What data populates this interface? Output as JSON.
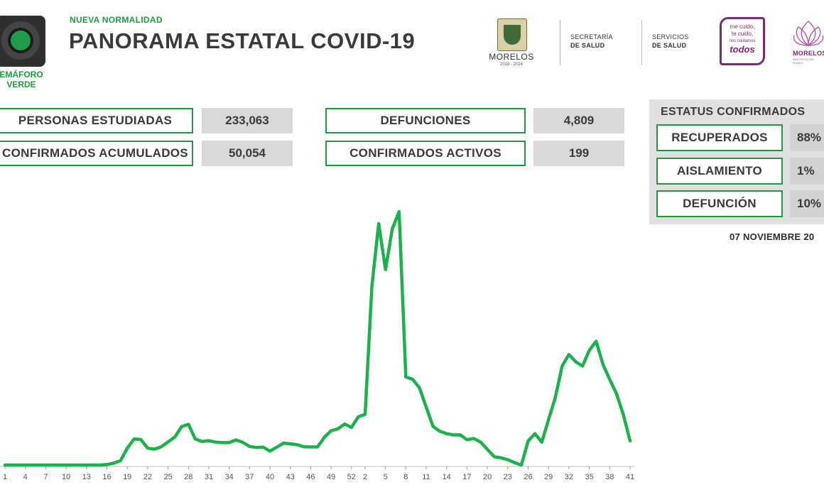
{
  "header": {
    "semaforo_label_line1": "EMÁFORO",
    "semaforo_label_line2": "VERDE",
    "kicker": "NUEVA NORMALIDAD",
    "title": "PANORAMA ESTATAL COVID-19",
    "logos": {
      "morelos_text": "MORELOS",
      "morelos_years": "2018 - 2024",
      "secretaria_line1": "SECRETARÍA",
      "secretaria_line2": "DE SALUD",
      "servicios_line1": "SERVICIOS",
      "servicios_line2": "DE SALUD",
      "todos_line1": "me cuido,",
      "todos_line2": "te cuido,",
      "todos_line3": "nos cuidamos",
      "todos_big": "todos",
      "morelos2": "MORELOS",
      "morelos2_sub": "ANFITRIÓN DEL MUNDO"
    },
    "colors": {
      "accent_green": "#20993f",
      "purple": "#7b2a7a"
    }
  },
  "stats": {
    "personas_label": "PERSONAS ESTUDIADAS",
    "personas_value": "233,063",
    "confirmados_label": "CONFIRMADOS ACUMULADOS",
    "confirmados_value": "50,054",
    "defunciones_label": "DEFUNCIONES",
    "defunciones_value": "4,809",
    "activos_label": "CONFIRMADOS ACTIVOS",
    "activos_value": "199"
  },
  "status": {
    "title": "ESTATUS CONFIRMADOS",
    "recuperados_label": "RECUPERADOS",
    "recuperados_value": "88%",
    "aislamiento_label": "AISLAMIENTO",
    "aislamiento_value": "1%",
    "defuncion_label": "DEFUNCIÓN",
    "defuncion_value": "10%",
    "date": "07 NOVIEMBRE 20"
  },
  "chart_data": {
    "type": "line",
    "title": "",
    "xlabel": "",
    "ylabel": "",
    "line_color": "#1fb04e",
    "grid": false,
    "tick_labels": [
      "1",
      "4",
      "7",
      "10",
      "13",
      "16",
      "19",
      "22",
      "25",
      "28",
      "31",
      "34",
      "37",
      "40",
      "43",
      "46",
      "49",
      "52",
      "2",
      "5",
      "8",
      "11",
      "14",
      "17",
      "20",
      "23",
      "26",
      "29",
      "32",
      "35",
      "38",
      "41"
    ],
    "ylim": [
      0,
      1000
    ],
    "values": [
      0,
      0,
      0,
      0,
      0,
      0,
      0,
      0,
      0,
      0,
      0,
      0,
      0,
      0,
      0,
      2,
      8,
      18,
      70,
      108,
      106,
      70,
      66,
      76,
      96,
      116,
      159,
      169,
      108,
      98,
      101,
      95,
      93,
      93,
      104,
      94,
      77,
      73,
      74,
      58,
      74,
      91,
      88,
      84,
      76,
      75,
      75,
      115,
      142,
      150,
      170,
      156,
      200,
      210,
      740,
      1000,
      810,
      978,
      1050,
      365,
      355,
      320,
      240,
      160,
      140,
      130,
      125,
      125,
      105,
      110,
      95,
      65,
      35,
      30,
      22,
      10,
      0,
      100,
      130,
      95,
      188,
      280,
      410,
      458,
      428,
      410,
      475,
      513,
      418,
      355,
      295,
      210,
      100
    ],
    "x_tick_indices": [
      0,
      3,
      6,
      9,
      12,
      15,
      18,
      21,
      24,
      27,
      30,
      33,
      36,
      39,
      42,
      45,
      48,
      51,
      53,
      56,
      59,
      62,
      65,
      68,
      71,
      74,
      77,
      80,
      83,
      86,
      89,
      92
    ]
  }
}
